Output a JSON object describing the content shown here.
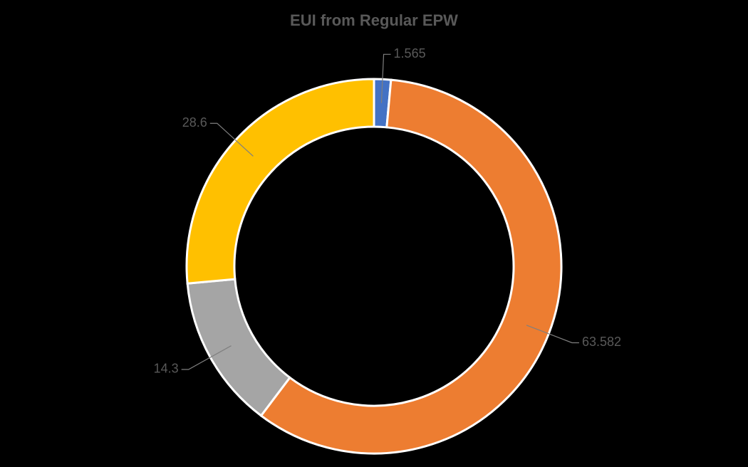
{
  "chart_data": {
    "type": "donut",
    "title": "EUI from Regular EPW",
    "values": [
      1.565,
      63.582,
      14.3,
      28.6
    ],
    "colors": [
      "#4472c4",
      "#ed7d31",
      "#a5a5a5",
      "#ffc000"
    ]
  }
}
